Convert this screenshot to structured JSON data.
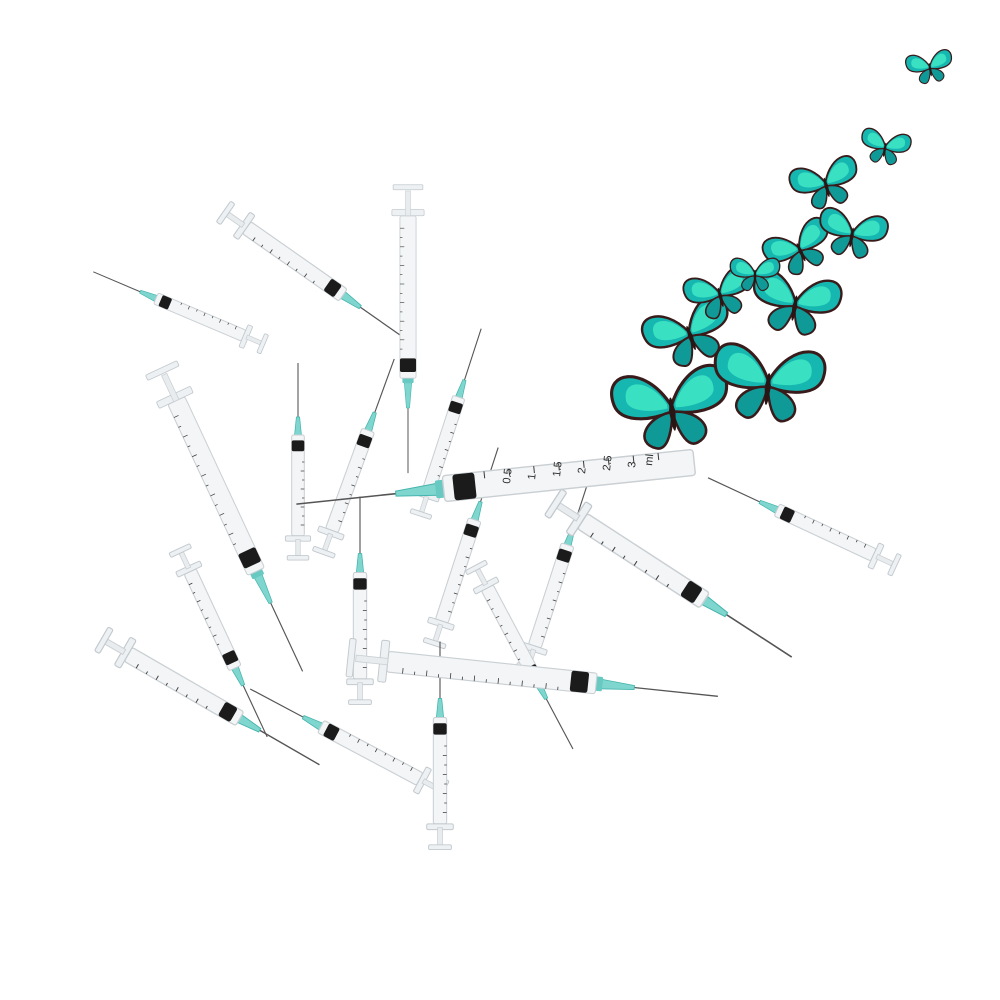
{
  "scene": {
    "background": "#ffffff",
    "colors": {
      "barrel": "#f3f5f6",
      "barrel_edge": "#c9cfd3",
      "plunger": "#e9ecee",
      "stopper": "#1b1b1b",
      "hub": "#7fd6cf",
      "hub_dark": "#45b5ad",
      "needle": "#555555",
      "wing_light": "#3fe7c6",
      "wing_mid": "#16b7b0",
      "wing_dark": "#0f6f7e",
      "wing_edge": "#3a1b1b"
    },
    "main_syringe": {
      "unit": "ml",
      "scale_labels": [
        "0.5",
        "1",
        "1.5",
        "2",
        "2.5",
        "3"
      ]
    },
    "icons": [
      "syringe-icon",
      "butterfly-icon"
    ]
  }
}
